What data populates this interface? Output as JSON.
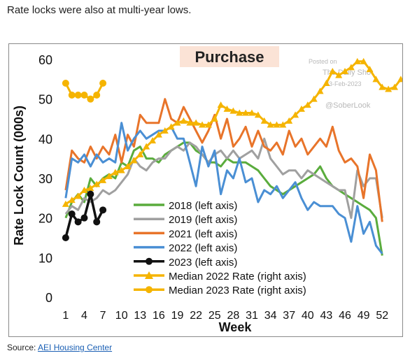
{
  "headline": "Rate locks were also at multi-year lows.",
  "source": {
    "prefix": "Source:",
    "link_text": "AEI Housing Center"
  },
  "chart_data": {
    "type": "line",
    "title": "Purchase",
    "xlabel": "Week",
    "ylabel": "Rate Lock Count (000s)",
    "ylim": [
      0,
      60
    ],
    "xlim": [
      0,
      54
    ],
    "yticks": [
      0,
      10,
      20,
      30,
      40,
      50,
      60
    ],
    "xticks": [
      1,
      4,
      7,
      10,
      13,
      16,
      19,
      22,
      25,
      28,
      31,
      34,
      37,
      40,
      43,
      46,
      49,
      52
    ],
    "grid": false,
    "legend_position": "lower-left",
    "watermark": [
      "Posted on",
      "The Daily Shot",
      "23-Feb-2023",
      "@SoberLook"
    ],
    "series": [
      {
        "name": "2018 (left axis)",
        "color": "#5aac3d",
        "marker": "none",
        "values": [
          20,
          24,
          26,
          24,
          30,
          28,
          30,
          31,
          30,
          34,
          33,
          37,
          38,
          35,
          35,
          34,
          36,
          37,
          38,
          39,
          39,
          37,
          36,
          34,
          34,
          33,
          35,
          34,
          34,
          34,
          33,
          32,
          30,
          28,
          27,
          26,
          27,
          28,
          29,
          30,
          31,
          33,
          30,
          28,
          27,
          26,
          25,
          24,
          23,
          22,
          20,
          10.5
        ]
      },
      {
        "name": "2019 (left axis)",
        "color": "#a0a0a0",
        "marker": "none",
        "values": [
          21,
          23,
          22,
          25,
          24,
          25,
          27,
          26,
          27,
          29,
          31,
          35,
          33,
          32,
          34,
          35,
          35,
          37,
          38,
          37,
          39,
          38,
          36,
          34,
          36,
          37,
          35,
          37,
          35,
          36,
          37,
          35,
          40,
          35,
          33,
          31,
          32,
          32,
          30,
          32,
          31,
          30,
          29,
          28,
          27,
          27,
          20,
          32,
          28,
          30,
          30,
          20
        ]
      },
      {
        "name": "2021 (left axis)",
        "color": "#e8742a",
        "marker": "none",
        "values": [
          27,
          37,
          35,
          34,
          38,
          35,
          38,
          36,
          41,
          34,
          41,
          38,
          46,
          44,
          44,
          44,
          50,
          45,
          44,
          48,
          45,
          42,
          39,
          42,
          46,
          40,
          45,
          38,
          40,
          43,
          38,
          42,
          38,
          37,
          39,
          36,
          42,
          38,
          40,
          36,
          38,
          40,
          38,
          43,
          37,
          34,
          35,
          33,
          25,
          36,
          32,
          19
        ]
      },
      {
        "name": "2022 (left axis)",
        "color": "#4a8fd4",
        "marker": "none",
        "values": [
          25,
          35,
          34,
          36,
          33,
          36,
          34,
          35,
          34,
          44,
          37,
          40,
          42,
          40,
          41,
          42,
          42,
          43,
          40,
          40,
          34,
          28,
          38,
          33,
          37,
          26,
          32,
          30,
          35,
          29,
          30,
          24,
          27,
          26,
          28,
          25,
          27,
          29,
          25,
          22,
          24,
          23,
          23,
          23,
          21,
          20,
          14,
          23,
          16,
          19,
          13,
          11
        ]
      },
      {
        "name": "2023 (left axis)",
        "color": "#111111",
        "marker": "circle",
        "values": [
          15,
          21,
          19,
          20,
          26,
          19,
          22
        ]
      },
      {
        "name": "Median 2022 Rate (right axis)",
        "color": "#f5b400",
        "marker": "triangle",
        "values": [
          23.5,
          24.5,
          25.5,
          27,
          27.5,
          28.5,
          29.5,
          30.5,
          31.5,
          32,
          33,
          34.5,
          36,
          38,
          39.5,
          41,
          42,
          43,
          44,
          44.5,
          44,
          44,
          43.5,
          43.5,
          45,
          48.5,
          47.5,
          47,
          46.5,
          46.5,
          46.5,
          46,
          44.5,
          43.5,
          43.5,
          43.5,
          44.5,
          46,
          47.5,
          48.5,
          50,
          52,
          54,
          57,
          56,
          57,
          58,
          59.5,
          59.5,
          57.5,
          55,
          53,
          52.5,
          53,
          55
        ]
      },
      {
        "name": "Median 2023 Rate (right axis)",
        "color": "#f5b400",
        "marker": "circle",
        "values": [
          54,
          51,
          51,
          51,
          50,
          51,
          54
        ]
      }
    ]
  }
}
